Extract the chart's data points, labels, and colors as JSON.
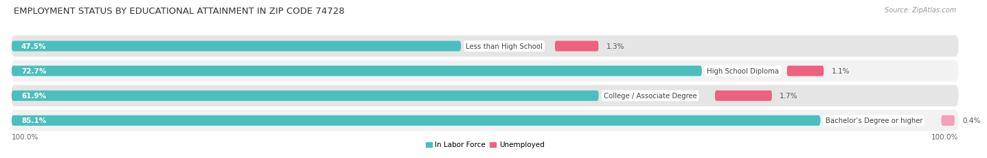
{
  "title": "EMPLOYMENT STATUS BY EDUCATIONAL ATTAINMENT IN ZIP CODE 74728",
  "source": "Source: ZipAtlas.com",
  "categories": [
    "Less than High School",
    "High School Diploma",
    "College / Associate Degree",
    "Bachelor’s Degree or higher"
  ],
  "labor_force_pct": [
    47.5,
    72.7,
    61.9,
    85.1
  ],
  "unemployed_pct": [
    1.3,
    1.1,
    1.7,
    0.4
  ],
  "labor_force_color": "#4BBFBE",
  "unemployed_color_bright": "#F06080",
  "unemployed_color_light": "#F5A0B8",
  "row_bg_color_light": "#F2F2F2",
  "row_bg_color_dark": "#E5E5E5",
  "x_left_label": "100.0%",
  "x_right_label": "100.0%",
  "legend_labor": "In Labor Force",
  "legend_unemployed": "Unemployed",
  "title_fontsize": 9.5,
  "label_fontsize": 7.5,
  "tick_fontsize": 7.5
}
